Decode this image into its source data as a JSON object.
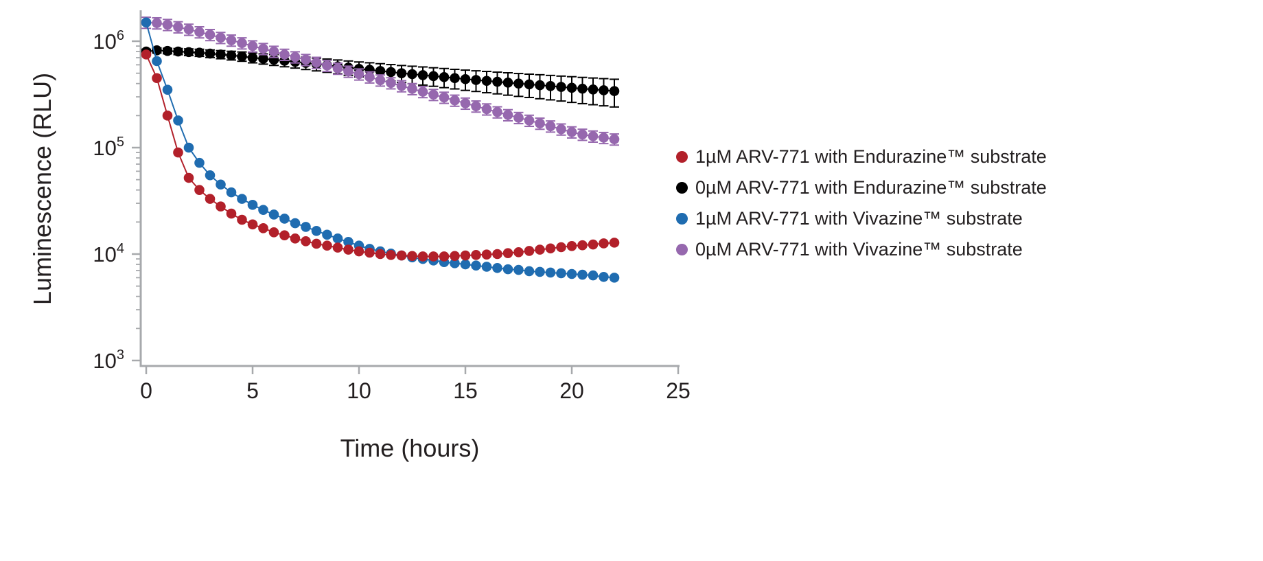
{
  "chart_data": {
    "type": "line",
    "title": "",
    "xlabel": "Time (hours)",
    "ylabel": "Luminescence (RLU)",
    "axis_color": "#a7a9ac",
    "text_color": "#231f20",
    "x_axis": {
      "min": 0,
      "max": 25,
      "ticks": [
        0,
        5,
        10,
        15,
        20,
        25
      ]
    },
    "y_axis": {
      "scale": "log",
      "min": 1000,
      "max": 2000000,
      "tick_exponents": [
        3,
        4,
        5,
        6
      ]
    },
    "legend_position": "right",
    "x_hours": [
      0,
      0.5,
      1,
      1.5,
      2,
      2.5,
      3,
      3.5,
      4,
      4.5,
      5,
      5.5,
      6,
      6.5,
      7,
      7.5,
      8,
      8.5,
      9,
      9.5,
      10,
      10.5,
      11,
      11.5,
      12,
      12.5,
      13,
      13.5,
      14,
      14.5,
      15,
      15.5,
      16,
      16.5,
      17,
      17.5,
      18,
      18.5,
      19,
      19.5,
      20,
      20.5,
      21,
      21.5,
      22
    ],
    "series": [
      {
        "id": "1um-arv771-endurazine",
        "name": "1µM ARV-771 with Endurazine™ substrate",
        "color": "#b2202a",
        "values": [
          750000,
          450000,
          200000,
          90000,
          52000,
          40000,
          33000,
          28000,
          24000,
          21000,
          19000,
          17500,
          16000,
          15000,
          14000,
          13200,
          12500,
          12000,
          11500,
          11000,
          10600,
          10300,
          10000,
          9800,
          9700,
          9600,
          9500,
          9500,
          9500,
          9600,
          9700,
          9800,
          9900,
          10000,
          10200,
          10400,
          10700,
          11000,
          11300,
          11600,
          11900,
          12100,
          12300,
          12600,
          12800
        ]
      },
      {
        "id": "0um-arv771-endurazine",
        "name": "0µM ARV-771 with Endurazine™ substrate",
        "color": "#000000",
        "values": [
          800000,
          820000,
          810000,
          800000,
          790000,
          780000,
          765000,
          750000,
          735000,
          720000,
          700000,
          685000,
          670000,
          655000,
          640000,
          625000,
          610000,
          595000,
          580000,
          565000,
          550000,
          538000,
          525000,
          513000,
          500000,
          490000,
          480000,
          470000,
          460000,
          450000,
          440000,
          432000,
          424000,
          416000,
          408000,
          400000,
          393000,
          386000,
          379000,
          372000,
          365000,
          358000,
          352000,
          346000,
          340000
        ],
        "errors": [
          40000,
          45000,
          49000,
          53000,
          57000,
          60000,
          63000,
          66000,
          69000,
          72000,
          74000,
          76000,
          78000,
          80000,
          81000,
          83000,
          84000,
          85000,
          86000,
          87000,
          88000,
          89000,
          90000,
          90000,
          91000,
          92000,
          93000,
          93000,
          94000,
          94000,
          95000,
          95000,
          96000,
          96000,
          97000,
          97000,
          97000,
          98000,
          98000,
          98000,
          99000,
          99000,
          99000,
          99000,
          99000
        ]
      },
      {
        "id": "1um-arv771-vivazine",
        "name": "1µM ARV-771 with Vivazine™ substrate",
        "color": "#1f6cb0",
        "values": [
          1500000,
          650000,
          350000,
          180000,
          100000,
          72000,
          55000,
          45000,
          38000,
          33000,
          29000,
          26000,
          23500,
          21500,
          19500,
          18000,
          16500,
          15200,
          14000,
          13000,
          12000,
          11200,
          10600,
          10100,
          9700,
          9300,
          9000,
          8700,
          8400,
          8200,
          8000,
          7800,
          7600,
          7400,
          7200,
          7100,
          6900,
          6800,
          6700,
          6600,
          6500,
          6400,
          6300,
          6100,
          6000
        ]
      },
      {
        "id": "0um-arv771-vivazine",
        "name": "0µM ARV-771 with Vivazine™ substrate",
        "color": "#9668ae",
        "values": [
          1500000,
          1480000,
          1430000,
          1360000,
          1290000,
          1220000,
          1150000,
          1080000,
          1020000,
          960000,
          900000,
          850000,
          800000,
          750000,
          710000,
          670000,
          630000,
          590000,
          555000,
          520000,
          490000,
          460000,
          430000,
          405000,
          380000,
          357000,
          335000,
          315000,
          296000,
          278000,
          261000,
          245000,
          230000,
          216000,
          203000,
          191000,
          180000,
          169000,
          159000,
          149000,
          140000,
          133000,
          128000,
          124000,
          120000
        ],
        "error_frac": 0.12
      }
    ]
  }
}
